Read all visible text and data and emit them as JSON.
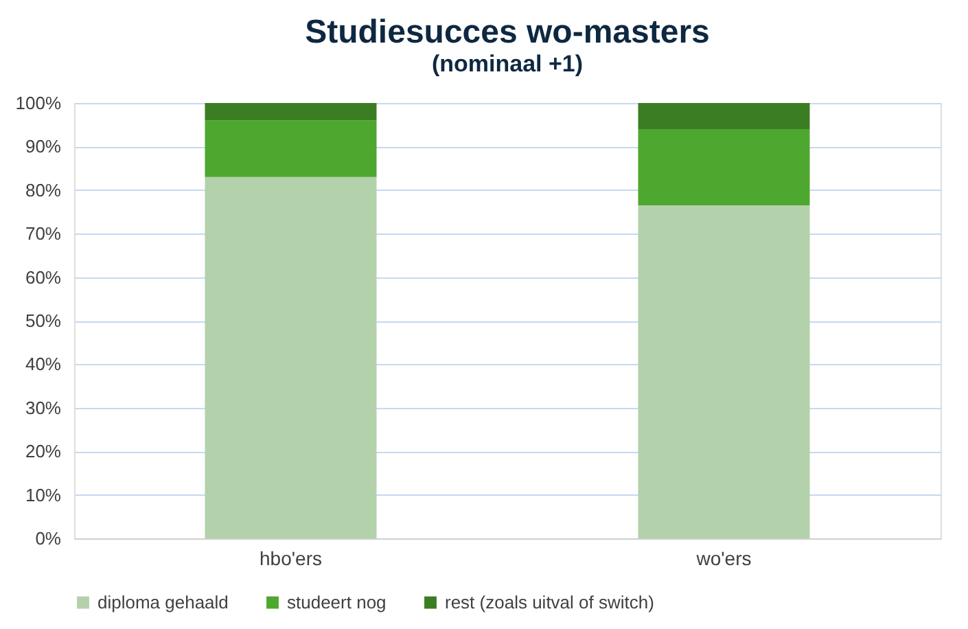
{
  "chart_data": {
    "type": "bar",
    "title": "Studiesucces wo-masters",
    "subtitle": "(nominaal +1)",
    "categories": [
      "hbo'ers",
      "wo'ers"
    ],
    "stacked": true,
    "series": [
      {
        "name": "diploma gehaald",
        "color": "#b3d1aa",
        "values": [
          83,
          76.5
        ]
      },
      {
        "name": "studeert nog",
        "color": "#4ea72e",
        "values": [
          13,
          17.5
        ]
      },
      {
        "name": "rest (zoals uitval of switch)",
        "color": "#3b7d23",
        "values": [
          4,
          6
        ]
      }
    ],
    "ylim": [
      0,
      100
    ],
    "yticks": [
      {
        "value": 0,
        "label": "0%"
      },
      {
        "value": 10,
        "label": "10%"
      },
      {
        "value": 20,
        "label": "20%"
      },
      {
        "value": 30,
        "label": "30%"
      },
      {
        "value": 40,
        "label": "40%"
      },
      {
        "value": 50,
        "label": "50%"
      },
      {
        "value": 60,
        "label": "60%"
      },
      {
        "value": 70,
        "label": "70%"
      },
      {
        "value": 80,
        "label": "80%"
      },
      {
        "value": 90,
        "label": "90%"
      },
      {
        "value": 100,
        "label": "100%"
      }
    ],
    "grid": "y",
    "legend": "bottom"
  }
}
